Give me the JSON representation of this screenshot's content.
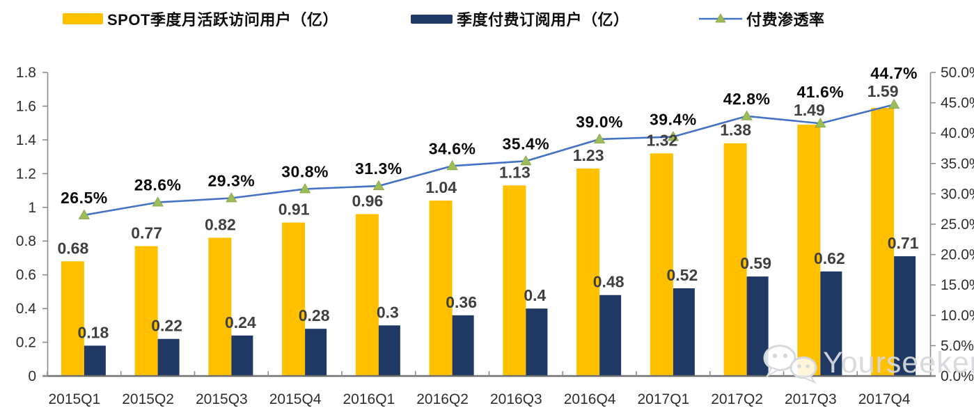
{
  "legend": [
    {
      "label": "SPOT季度月活跃访问用户（亿）",
      "swatch": "yellow-bar"
    },
    {
      "label": "季度付费订阅用户（亿）",
      "swatch": "navy-bar"
    },
    {
      "label": "付费渗透率",
      "swatch": "line-marker"
    }
  ],
  "colors": {
    "mau_bar": "#FFC000",
    "paid_bar": "#1F3864",
    "line": "#4472C4",
    "marker": "#9CBB59",
    "marker_edge": "#85A443",
    "axis": "#8C8C8C",
    "axis_bottom": "#6E6E6E",
    "watermark": "#D6D8DC"
  },
  "watermark": {
    "text": "Yourseeker",
    "icon": "wechat-icon"
  },
  "chart_data": {
    "type": "combo",
    "title": "",
    "legend_position": "top",
    "grid": false,
    "categories": [
      "2015Q1",
      "2015Q2",
      "2015Q3",
      "2015Q4",
      "2016Q1",
      "2016Q2",
      "2016Q3",
      "2016Q4",
      "2017Q1",
      "2017Q2",
      "2017Q3",
      "2017Q4"
    ],
    "series": [
      {
        "name": "SPOT季度月活跃访问用户（亿）",
        "type": "bar",
        "axis": "left",
        "values": [
          0.68,
          0.77,
          0.82,
          0.91,
          0.96,
          1.04,
          1.13,
          1.23,
          1.32,
          1.38,
          1.49,
          1.59
        ],
        "labels": [
          "0.68",
          "0.77",
          "0.82",
          "0.91",
          "0.96",
          "1.04",
          "1.13",
          "1.23",
          "1.32",
          "1.38",
          "1.49",
          "1.59"
        ]
      },
      {
        "name": "季度付费订阅用户（亿）",
        "type": "bar",
        "axis": "left",
        "values": [
          0.18,
          0.22,
          0.24,
          0.28,
          0.3,
          0.36,
          0.4,
          0.48,
          0.52,
          0.59,
          0.62,
          0.71
        ],
        "labels": [
          "0.18",
          "0.22",
          "0.24",
          "0.28",
          "0.3",
          "0.36",
          "0.4",
          "0.48",
          "0.52",
          "0.59",
          "0.62",
          "0.71"
        ]
      },
      {
        "name": "付费渗透率",
        "type": "line",
        "axis": "right",
        "values": [
          26.5,
          28.6,
          29.3,
          30.8,
          31.3,
          34.6,
          35.4,
          39.0,
          39.4,
          42.8,
          41.6,
          44.7
        ],
        "labels": [
          "26.5%",
          "28.6%",
          "29.3%",
          "30.8%",
          "31.3%",
          "34.6%",
          "35.4%",
          "39.0%",
          "39.4%",
          "42.8%",
          "41.6%",
          "44.7%"
        ]
      }
    ],
    "left_axis": {
      "min": 0,
      "max": 1.8,
      "step": 0.2,
      "tick_labels": [
        "0",
        "0.2",
        "0.4",
        "0.6",
        "0.8",
        "1",
        "1.2",
        "1.4",
        "1.6",
        "1.8"
      ]
    },
    "right_axis": {
      "min": 0,
      "max": 50,
      "step": 5,
      "tick_labels": [
        "0.0%",
        "5.0%",
        "10.0%",
        "15.0%",
        "20.0%",
        "25.0%",
        "30.0%",
        "35.0%",
        "40.0%",
        "45.0%",
        "50.0%"
      ]
    }
  }
}
